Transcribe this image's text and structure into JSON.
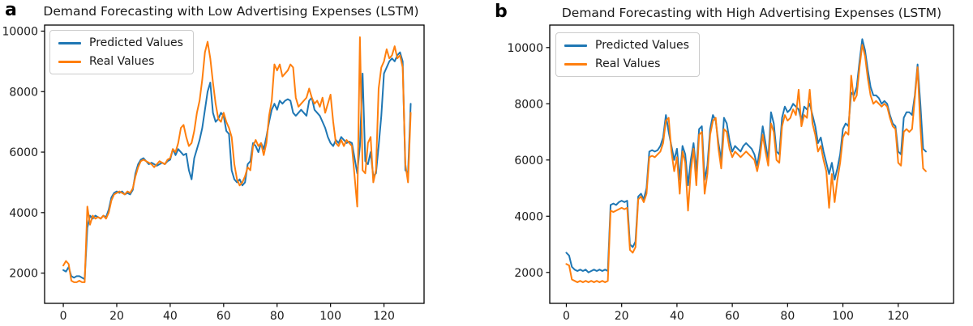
{
  "figure": {
    "background": "#ffffff"
  },
  "panels": [
    {
      "label": "a",
      "title": "Demand Forecasting with Low Advertising Expenses (LSTM)"
    },
    {
      "label": "b",
      "title": "Demand Forecasting with High Advertising Expenses (LSTM)"
    }
  ],
  "colors": {
    "predicted": "#1f77b4",
    "real": "#ff7f0e",
    "text": "#1a1a1a",
    "spine": "#000000",
    "legend_border": "#cccccc"
  },
  "chart_data": [
    {
      "type": "line",
      "panel": "a",
      "title": "Demand Forecasting with Low Advertising Expenses (LSTM)",
      "xlabel": "",
      "ylabel": "",
      "xlim": [
        -7,
        135
      ],
      "ylim": [
        1000,
        10200
      ],
      "xticks": [
        0,
        20,
        40,
        60,
        80,
        100,
        120
      ],
      "yticks": [
        2000,
        4000,
        6000,
        8000,
        10000
      ],
      "grid": false,
      "legend_position": "upper left",
      "x_start": 0,
      "x_step": 1,
      "series": [
        {
          "name": "Predicted Values",
          "color": "#1f77b4",
          "values": [
            2100,
            2050,
            2200,
            1900,
            1850,
            1900,
            1900,
            1850,
            1800,
            3500,
            3900,
            3800,
            3900,
            3850,
            3800,
            3900,
            3850,
            4100,
            4500,
            4650,
            4700,
            4650,
            4700,
            4600,
            4650,
            4600,
            4750,
            5300,
            5600,
            5750,
            5800,
            5700,
            5600,
            5650,
            5600,
            5550,
            5600,
            5650,
            5600,
            5700,
            5750,
            6100,
            5900,
            6100,
            6000,
            5900,
            5950,
            5400,
            5100,
            5800,
            6100,
            6400,
            6800,
            7400,
            8000,
            8300,
            7300,
            7000,
            7100,
            7300,
            7200,
            6700,
            6600,
            5400,
            5100,
            5000,
            5100,
            4900,
            5000,
            5600,
            5700,
            6300,
            6200,
            6000,
            6300,
            6100,
            6500,
            7000,
            7400,
            7600,
            7400,
            7700,
            7600,
            7700,
            7750,
            7700,
            7300,
            7200,
            7300,
            7400,
            7300,
            7200,
            7700,
            7800,
            7400,
            7300,
            7200,
            7000,
            6800,
            6500,
            6300,
            6200,
            6400,
            6300,
            6500,
            6400,
            6300,
            6350,
            6300,
            5800,
            5300,
            6200,
            8600,
            5700,
            5600,
            6000,
            5200,
            5300,
            6200,
            7200,
            8600,
            8800,
            9000,
            9100,
            9000,
            9200,
            9300,
            9000,
            5400,
            5300,
            7600
          ]
        },
        {
          "name": "Real Values",
          "color": "#ff7f0e",
          "values": [
            2250,
            2400,
            2300,
            1750,
            1700,
            1700,
            1750,
            1700,
            1700,
            4200,
            3600,
            3900,
            3800,
            3850,
            3800,
            3900,
            3800,
            4000,
            4400,
            4600,
            4650,
            4700,
            4650,
            4600,
            4700,
            4650,
            4800,
            5200,
            5500,
            5700,
            5750,
            5700,
            5650,
            5600,
            5500,
            5600,
            5700,
            5650,
            5600,
            5750,
            5800,
            6100,
            6000,
            6300,
            6800,
            6900,
            6500,
            6200,
            6300,
            6700,
            7300,
            7700,
            8400,
            9300,
            9650,
            9100,
            8300,
            7600,
            7100,
            7000,
            7300,
            7000,
            6800,
            6500,
            5600,
            5100,
            4900,
            5000,
            5200,
            5500,
            5400,
            6200,
            6400,
            6200,
            6300,
            5900,
            6300,
            7200,
            7700,
            8900,
            8700,
            8900,
            8500,
            8600,
            8700,
            8900,
            8800,
            7800,
            7500,
            7600,
            7700,
            7800,
            8100,
            7800,
            7600,
            7700,
            7500,
            7800,
            7300,
            7600,
            7900,
            7000,
            6300,
            6200,
            6400,
            6200,
            6400,
            6300,
            6200,
            5200,
            4200,
            9800,
            5400,
            5300,
            6300,
            6500,
            5000,
            5400,
            8100,
            8800,
            9000,
            9400,
            9100,
            9200,
            9500,
            9100,
            9200,
            8800,
            5600,
            5000,
            7300
          ]
        }
      ]
    },
    {
      "type": "line",
      "panel": "b",
      "title": "Demand Forecasting with High Advertising Expenses (LSTM)",
      "xlabel": "",
      "ylabel": "",
      "xlim": [
        -6,
        140
      ],
      "ylim": [
        900,
        10800
      ],
      "xticks": [
        0,
        20,
        40,
        60,
        80,
        100,
        120
      ],
      "yticks": [
        2000,
        4000,
        6000,
        8000,
        10000
      ],
      "grid": false,
      "legend_position": "upper left",
      "x_start": 0,
      "x_step": 1,
      "series": [
        {
          "name": "Predicted Values",
          "color": "#1f77b4",
          "values": [
            2700,
            2600,
            2200,
            2100,
            2050,
            2100,
            2050,
            2100,
            2000,
            2050,
            2100,
            2050,
            2100,
            2050,
            2100,
            2050,
            4400,
            4450,
            4400,
            4500,
            4550,
            4500,
            4550,
            3000,
            2900,
            3100,
            4700,
            4800,
            4600,
            5000,
            6300,
            6350,
            6300,
            6350,
            6500,
            6800,
            7600,
            7000,
            6500,
            6000,
            6400,
            5300,
            6500,
            6200,
            5100,
            6000,
            6600,
            5600,
            7100,
            7200,
            5300,
            5800,
            7100,
            7600,
            7400,
            6600,
            6000,
            7500,
            7300,
            6700,
            6300,
            6500,
            6400,
            6300,
            6500,
            6600,
            6500,
            6400,
            6200,
            5800,
            6400,
            7200,
            6600,
            6000,
            7700,
            7300,
            6300,
            6200,
            7500,
            7900,
            7700,
            7800,
            8000,
            7900,
            7800,
            7400,
            7900,
            7800,
            8000,
            7600,
            7200,
            6600,
            6800,
            6300,
            5900,
            5500,
            5900,
            5300,
            5700,
            6200,
            7100,
            7300,
            7200,
            8400,
            8300,
            8600,
            9500,
            10300,
            9900,
            9200,
            8600,
            8300,
            8300,
            8200,
            8000,
            8100,
            8000,
            7600,
            7300,
            7200,
            6300,
            6200,
            7500,
            7700,
            7700,
            7600,
            8300,
            9400,
            8000,
            6400,
            6300
          ]
        },
        {
          "name": "Real Values",
          "color": "#ff7f0e",
          "values": [
            2300,
            2250,
            1750,
            1700,
            1650,
            1700,
            1650,
            1700,
            1650,
            1700,
            1650,
            1700,
            1650,
            1700,
            1650,
            1700,
            4200,
            4150,
            4200,
            4250,
            4300,
            4250,
            4300,
            2800,
            2700,
            2900,
            4600,
            4700,
            4500,
            4800,
            6100,
            6150,
            6100,
            6200,
            6300,
            6600,
            7400,
            7500,
            6300,
            5600,
            6100,
            4800,
            6300,
            5900,
            4200,
            5600,
            6400,
            5100,
            6900,
            7000,
            4800,
            5500,
            6900,
            7400,
            7500,
            6400,
            5700,
            7100,
            7000,
            6400,
            6100,
            6300,
            6200,
            6100,
            6200,
            6300,
            6200,
            6100,
            6000,
            5600,
            6100,
            6900,
            6300,
            5800,
            7300,
            7000,
            6000,
            5900,
            7200,
            7600,
            7400,
            7500,
            7800,
            7600,
            8500,
            7200,
            7600,
            7500,
            8500,
            7300,
            6900,
            6300,
            6500,
            6000,
            5600,
            4300,
            5500,
            4500,
            5300,
            5900,
            6800,
            7000,
            6900,
            9000,
            8100,
            8300,
            9300,
            10100,
            9700,
            8900,
            8300,
            8000,
            8100,
            8000,
            7900,
            8000,
            7900,
            7500,
            7200,
            7100,
            5900,
            5800,
            7000,
            7100,
            7000,
            7100,
            8200,
            9300,
            7200,
            5700,
            5600
          ]
        }
      ]
    }
  ]
}
